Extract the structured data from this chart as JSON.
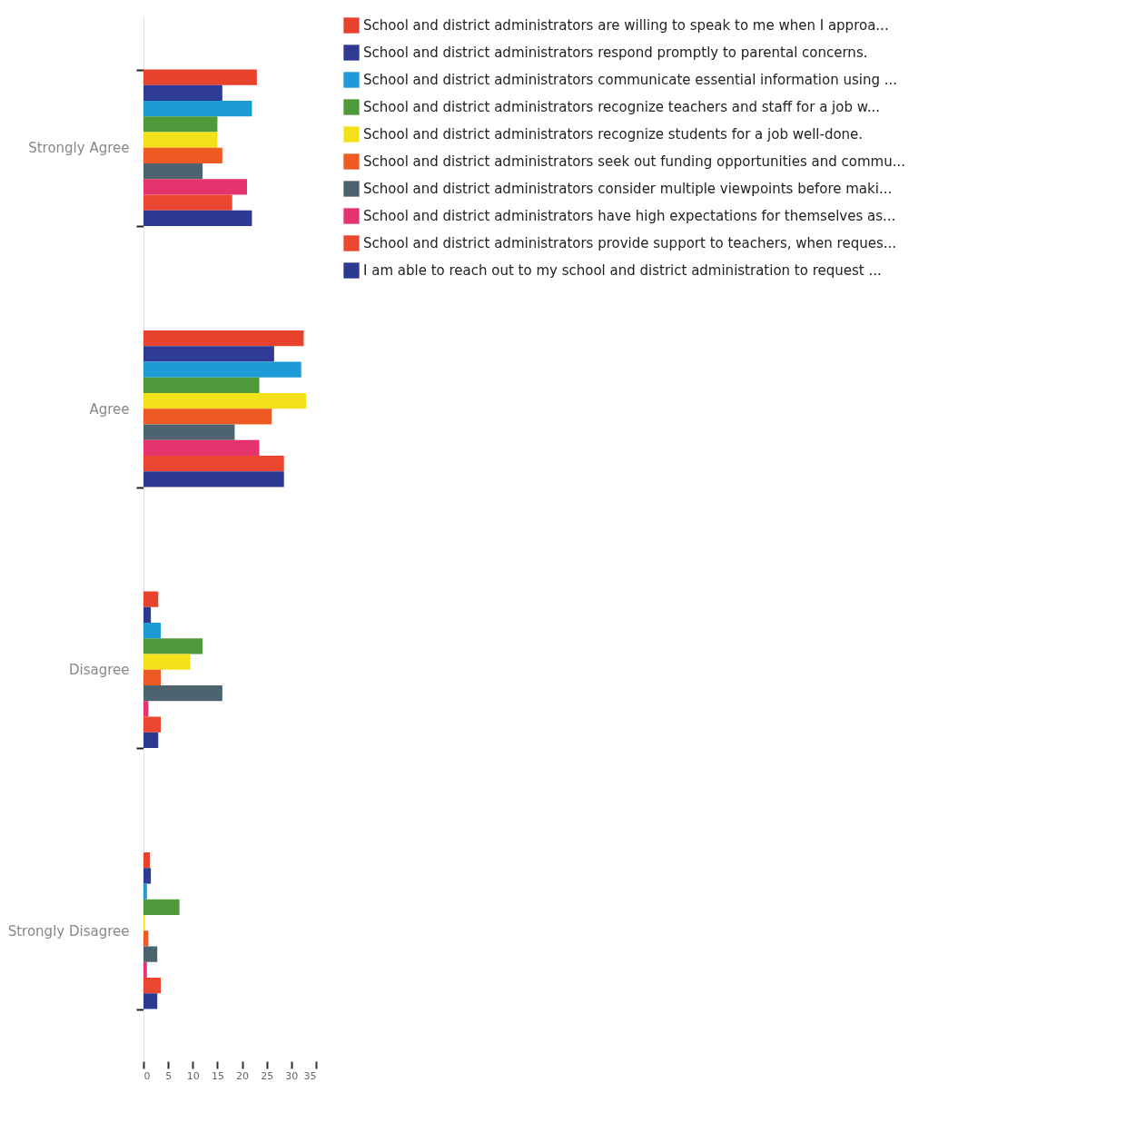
{
  "chart_data": {
    "type": "bar",
    "orientation": "horizontal",
    "categories": [
      "Strongly Agree",
      "Agree",
      "Disagree",
      "Strongly Disagree"
    ],
    "series": [
      {
        "name": "School and district administrators are willing to speak to me when I approa...",
        "color": "#e8412c",
        "values": [
          23,
          32.5,
          3,
          1.3
        ]
      },
      {
        "name": "School and district administrators respond promptly to parental concerns.",
        "color": "#2e3a93",
        "values": [
          16,
          26.5,
          1.5,
          1.5
        ]
      },
      {
        "name": "School and district administrators communicate essential information using ...",
        "color": "#1e9ad6",
        "values": [
          22,
          32,
          3.5,
          0.7
        ]
      },
      {
        "name": "School and district administrators recognize teachers and staff for a job w...",
        "color": "#4e9a3a",
        "values": [
          15,
          23.5,
          12,
          7.3
        ]
      },
      {
        "name": "School and district administrators recognize students for a job well-done.",
        "color": "#f5e11a",
        "values": [
          15,
          33,
          9.5,
          0.3
        ]
      },
      {
        "name": "School and district administrators seek out funding opportunities and commu...",
        "color": "#ee5a24",
        "values": [
          16,
          26,
          3.5,
          1
        ]
      },
      {
        "name": "School and district administrators consider multiple viewpoints before maki...",
        "color": "#4d6470",
        "values": [
          12,
          18.5,
          16,
          2.8
        ]
      },
      {
        "name": "School and district administrators have high expectations for themselves as...",
        "color": "#e6336e",
        "values": [
          21,
          23.5,
          1,
          0.7
        ]
      },
      {
        "name": "School and district administrators provide support to teachers, when reques...",
        "color": "#ea4630",
        "values": [
          18,
          28.5,
          3.5,
          3.5
        ]
      },
      {
        "name": "I am able to reach out to my school and district administration to request ...",
        "color": "#2b3990",
        "values": [
          22,
          28.5,
          3,
          2.8
        ]
      }
    ],
    "xlim": [
      0,
      35
    ],
    "xticks": [
      0,
      5,
      10,
      15,
      20,
      25,
      30,
      35
    ],
    "grid": false,
    "legend": "right"
  }
}
